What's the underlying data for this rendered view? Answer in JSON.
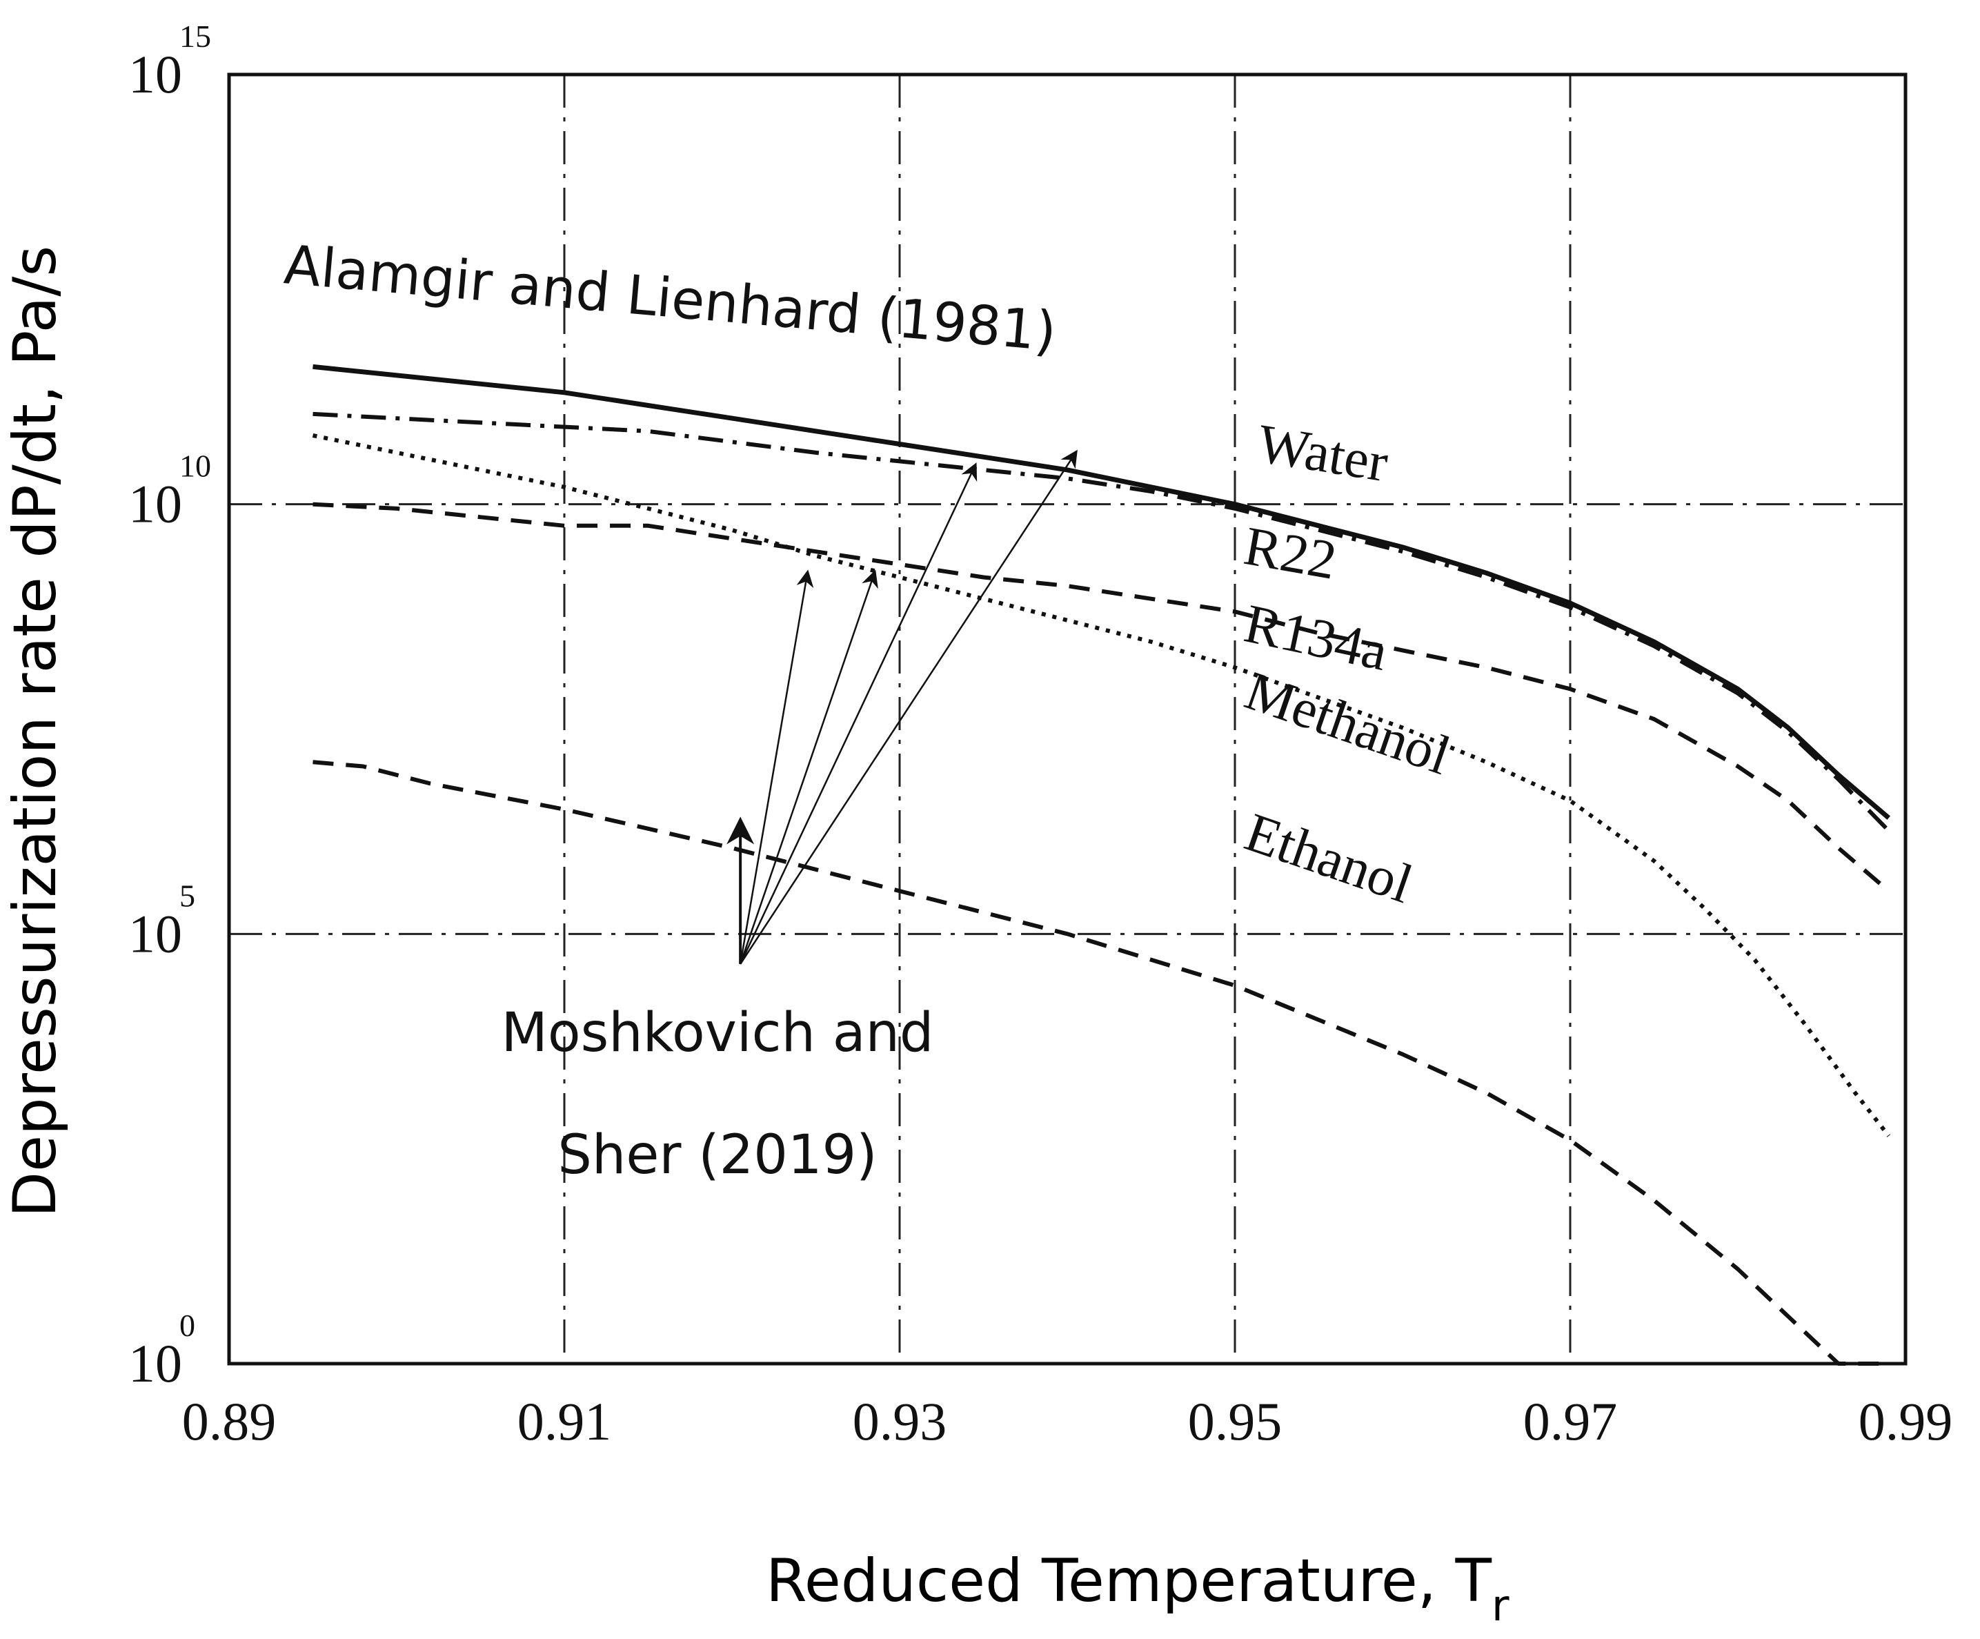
{
  "chart_data": {
    "type": "line",
    "xlabel": "Reduced Temperature, T",
    "xlabel_subscript": "r",
    "ylabel": "Depressurization rate dP/dt, Pa/s",
    "y_scale": "log",
    "xlim": [
      0.89,
      0.99
    ],
    "ylim_exponent": [
      0,
      15
    ],
    "x_ticks": [
      "0.89",
      "0.91",
      "0.93",
      "0.95",
      "0.97",
      "0.99"
    ],
    "y_ticks": [
      {
        "base": "10",
        "exp": "0"
      },
      {
        "base": "10",
        "exp": "5"
      },
      {
        "base": "10",
        "exp": "10"
      },
      {
        "base": "10",
        "exp": "15"
      }
    ],
    "grid": true,
    "series": [
      {
        "name": "Water",
        "style": "solid",
        "x": [
          0.895,
          0.9,
          0.905,
          0.91,
          0.915,
          0.92,
          0.925,
          0.93,
          0.935,
          0.94,
          0.945,
          0.95,
          0.955,
          0.96,
          0.965,
          0.97,
          0.975,
          0.98,
          0.983,
          0.986,
          0.989
        ],
        "log10_y": [
          11.6,
          11.5,
          11.4,
          11.3,
          11.15,
          11.0,
          10.85,
          10.7,
          10.55,
          10.4,
          10.2,
          10.0,
          9.75,
          9.5,
          9.2,
          8.85,
          8.4,
          7.85,
          7.4,
          6.85,
          6.35
        ]
      },
      {
        "name": "R22",
        "style": "dashdot",
        "x": [
          0.895,
          0.905,
          0.915,
          0.925,
          0.93,
          0.935,
          0.94,
          0.945,
          0.95,
          0.955,
          0.96,
          0.965,
          0.97,
          0.975,
          0.98,
          0.983,
          0.986,
          0.989
        ],
        "log10_y": [
          11.05,
          10.95,
          10.85,
          10.6,
          10.5,
          10.4,
          10.3,
          10.15,
          9.95,
          9.7,
          9.45,
          9.15,
          8.8,
          8.35,
          7.8,
          7.35,
          6.8,
          6.2
        ]
      },
      {
        "name": "R134a",
        "style": "dashed",
        "x": [
          0.895,
          0.9,
          0.905,
          0.91,
          0.915,
          0.92,
          0.925,
          0.93,
          0.935,
          0.94,
          0.945,
          0.95,
          0.955,
          0.96,
          0.965,
          0.97,
          0.975,
          0.98,
          0.983,
          0.986,
          0.989
        ],
        "log10_y": [
          10.0,
          9.95,
          9.85,
          9.75,
          9.75,
          9.6,
          9.45,
          9.3,
          9.15,
          9.05,
          8.9,
          8.75,
          8.5,
          8.3,
          8.1,
          7.85,
          7.5,
          6.95,
          6.55,
          6.0,
          5.5
        ]
      },
      {
        "name": "Methanol",
        "style": "dotted",
        "x": [
          0.895,
          0.9,
          0.905,
          0.91,
          0.915,
          0.92,
          0.925,
          0.93,
          0.935,
          0.94,
          0.945,
          0.95,
          0.955,
          0.96,
          0.965,
          0.97,
          0.975,
          0.978,
          0.981,
          0.984,
          0.987,
          0.989
        ],
        "log10_y": [
          10.8,
          10.6,
          10.4,
          10.2,
          9.95,
          9.7,
          9.4,
          9.15,
          8.9,
          8.65,
          8.4,
          8.1,
          7.75,
          7.4,
          7.0,
          6.55,
          5.85,
          5.3,
          4.7,
          3.95,
          3.15,
          2.65
        ]
      },
      {
        "name": "Ethanol",
        "style": "dashed",
        "x": [
          0.895,
          0.898,
          0.902,
          0.91,
          0.92,
          0.93,
          0.94,
          0.95,
          0.955,
          0.96,
          0.965,
          0.97,
          0.975,
          0.98,
          0.983,
          0.986,
          0.989
        ],
        "log10_y": [
          7.0,
          6.95,
          6.75,
          6.45,
          6.0,
          5.5,
          5.0,
          4.4,
          4.0,
          3.6,
          3.15,
          2.6,
          1.9,
          1.1,
          0.55,
          -0.05,
          -0.9
        ]
      }
    ],
    "series_labels": {
      "Water": "Water",
      "R22": "R22",
      "R134a": "R134a",
      "Methanol": "Methanol",
      "Ethanol": "Ethanol"
    },
    "annotations": {
      "alamgir": "Alamgir and Lienhard (1981)",
      "moshkovich_line1": "Moshkovich and",
      "moshkovich_line2": "Sher (2019)"
    },
    "arrows": {
      "origin": {
        "x": 0.9205,
        "log10_y": 4.65
      },
      "targets": [
        {
          "x": 0.9205,
          "log10_y": 6.3
        },
        {
          "x": 0.9245,
          "log10_y": 9.2
        },
        {
          "x": 0.9285,
          "log10_y": 9.2
        },
        {
          "x": 0.9345,
          "log10_y": 10.45
        },
        {
          "x": 0.9405,
          "log10_y": 10.6
        }
      ]
    }
  }
}
